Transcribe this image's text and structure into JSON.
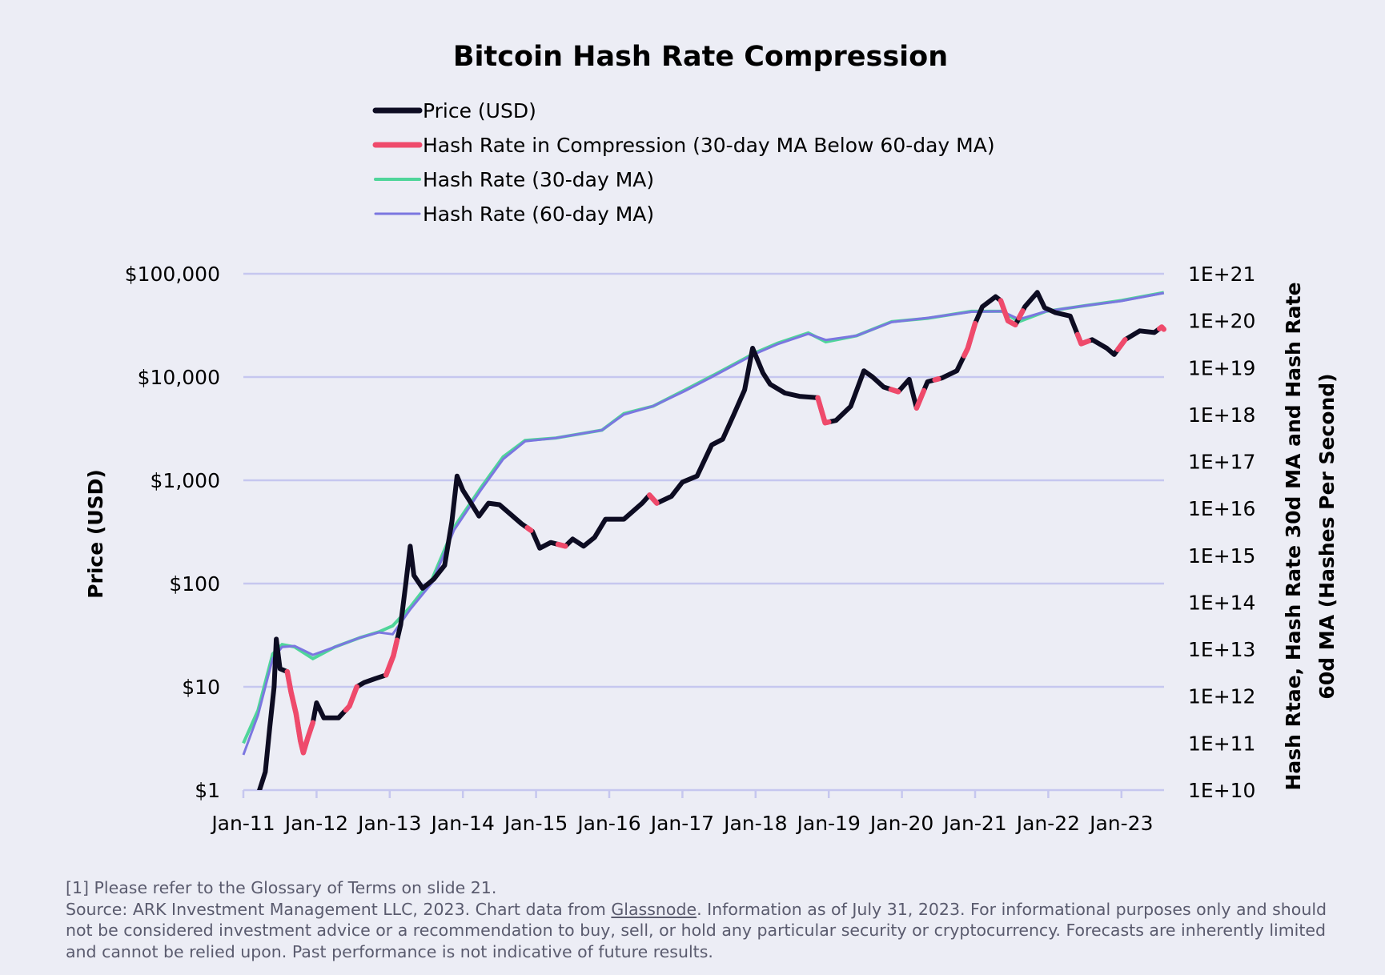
{
  "chart_data": {
    "type": "line",
    "title": "Bitcoin Hash Rate Compression",
    "legend_placement": "top",
    "grid": true,
    "legend": [
      {
        "name": "Price (USD)",
        "color": "#0d0c22"
      },
      {
        "name": "Hash Rate in Compression (30-day MA Below 60-day MA)",
        "color": "#ef4a6b"
      },
      {
        "name": "Hash Rate (30-day MA)",
        "color": "#4fd59a"
      },
      {
        "name": "Hash Rate (60-day MA)",
        "color": "#7b76e0"
      }
    ],
    "x_axis": {
      "ticks": [
        "Jan-11",
        "Jan-12",
        "Jan-13",
        "Jan-14",
        "Jan-15",
        "Jan-16",
        "Jan-17",
        "Jan-18",
        "Jan-19",
        "Jan-20",
        "Jan-21",
        "Jan-22",
        "Jan-23"
      ],
      "range": [
        "2011-01",
        "2023-07"
      ]
    },
    "y_left": {
      "label": "Price (USD)",
      "scale": "log",
      "range": [
        1,
        100000
      ],
      "ticks": [
        "$1",
        "$10",
        "$100",
        "$1,000",
        "$10,000",
        "$100,000"
      ]
    },
    "y_right": {
      "label_line1": "Hash Rtae, Hash Rate 30d MA and Hash Rate",
      "label_line2": "60d MA (Hashes Per Second)",
      "scale": "log",
      "range": [
        10000000000.0,
        1e+21
      ],
      "ticks": [
        "1E+10",
        "1E+11",
        "1E+12",
        "1E+13",
        "1E+14",
        "1E+15",
        "1E+16",
        "1E+17",
        "1E+18",
        "1E+19",
        "1E+20",
        "1E+21"
      ]
    },
    "series": [
      {
        "name": "Price (USD)",
        "axis": "left",
        "points": [
          [
            2011.08,
            0.9
          ],
          [
            2011.2,
            0.9
          ],
          [
            2011.3,
            1.5
          ],
          [
            2011.36,
            4
          ],
          [
            2011.42,
            10
          ],
          [
            2011.45,
            29
          ],
          [
            2011.5,
            15
          ],
          [
            2011.6,
            14
          ],
          [
            2011.65,
            9
          ],
          [
            2011.72,
            5.5
          ],
          [
            2011.78,
            3
          ],
          [
            2011.82,
            2.3
          ],
          [
            2011.88,
            3.2
          ],
          [
            2011.95,
            4.5
          ],
          [
            2012.0,
            7
          ],
          [
            2012.1,
            5
          ],
          [
            2012.3,
            5
          ],
          [
            2012.45,
            6.5
          ],
          [
            2012.55,
            10
          ],
          [
            2012.65,
            11
          ],
          [
            2012.8,
            12
          ],
          [
            2012.95,
            13
          ],
          [
            2013.05,
            20
          ],
          [
            2013.15,
            40
          ],
          [
            2013.22,
            100
          ],
          [
            2013.28,
            230
          ],
          [
            2013.33,
            120
          ],
          [
            2013.45,
            90
          ],
          [
            2013.6,
            110
          ],
          [
            2013.75,
            150
          ],
          [
            2013.85,
            400
          ],
          [
            2013.92,
            1100
          ],
          [
            2014.0,
            800
          ],
          [
            2014.1,
            620
          ],
          [
            2014.22,
            450
          ],
          [
            2014.35,
            600
          ],
          [
            2014.5,
            580
          ],
          [
            2014.65,
            470
          ],
          [
            2014.8,
            380
          ],
          [
            2014.95,
            320
          ],
          [
            2015.05,
            220
          ],
          [
            2015.2,
            250
          ],
          [
            2015.4,
            230
          ],
          [
            2015.5,
            270
          ],
          [
            2015.65,
            230
          ],
          [
            2015.8,
            280
          ],
          [
            2015.95,
            420
          ],
          [
            2016.2,
            420
          ],
          [
            2016.45,
            600
          ],
          [
            2016.55,
            720
          ],
          [
            2016.65,
            600
          ],
          [
            2016.85,
            700
          ],
          [
            2017.0,
            960
          ],
          [
            2017.2,
            1100
          ],
          [
            2017.4,
            2200
          ],
          [
            2017.55,
            2500
          ],
          [
            2017.7,
            4300
          ],
          [
            2017.85,
            7500
          ],
          [
            2017.96,
            19000
          ],
          [
            2018.1,
            11000
          ],
          [
            2018.2,
            8500
          ],
          [
            2018.4,
            7000
          ],
          [
            2018.6,
            6500
          ],
          [
            2018.85,
            6300
          ],
          [
            2018.95,
            3600
          ],
          [
            2019.1,
            3800
          ],
          [
            2019.3,
            5200
          ],
          [
            2019.48,
            11500
          ],
          [
            2019.6,
            10000
          ],
          [
            2019.75,
            8000
          ],
          [
            2019.95,
            7200
          ],
          [
            2020.1,
            9500
          ],
          [
            2020.2,
            5000
          ],
          [
            2020.35,
            9000
          ],
          [
            2020.55,
            9800
          ],
          [
            2020.75,
            11500
          ],
          [
            2020.9,
            19000
          ],
          [
            2021.0,
            33000
          ],
          [
            2021.1,
            48000
          ],
          [
            2021.28,
            60000
          ],
          [
            2021.35,
            55000
          ],
          [
            2021.45,
            35000
          ],
          [
            2021.55,
            32000
          ],
          [
            2021.68,
            48000
          ],
          [
            2021.85,
            66000
          ],
          [
            2021.95,
            47000
          ],
          [
            2022.1,
            42000
          ],
          [
            2022.3,
            39000
          ],
          [
            2022.45,
            21000
          ],
          [
            2022.6,
            23000
          ],
          [
            2022.8,
            19000
          ],
          [
            2022.9,
            16500
          ],
          [
            2023.05,
            23000
          ],
          [
            2023.25,
            28000
          ],
          [
            2023.45,
            27000
          ],
          [
            2023.55,
            30500
          ],
          [
            2023.58,
            29000
          ]
        ]
      },
      {
        "name": "Hash Rate (30-day MA)",
        "axis": "right",
        "points": [
          [
            2011.0,
            11.0
          ],
          [
            2011.2,
            11.7
          ],
          [
            2011.4,
            12.9
          ],
          [
            2011.53,
            13.1
          ],
          [
            2011.7,
            13.05
          ],
          [
            2011.95,
            12.8
          ],
          [
            2012.25,
            13.05
          ],
          [
            2012.6,
            13.25
          ],
          [
            2012.85,
            13.37
          ],
          [
            2013.04,
            13.5
          ],
          [
            2013.28,
            13.9
          ],
          [
            2013.58,
            14.5
          ],
          [
            2013.88,
            15.6
          ],
          [
            2014.25,
            16.45
          ],
          [
            2014.55,
            17.1
          ],
          [
            2014.85,
            17.45
          ],
          [
            2015.27,
            17.5
          ],
          [
            2015.9,
            17.67
          ],
          [
            2016.2,
            18.02
          ],
          [
            2016.6,
            18.18
          ],
          [
            2017.03,
            18.52
          ],
          [
            2017.45,
            18.86
          ],
          [
            2018.0,
            19.32
          ],
          [
            2018.3,
            19.52
          ],
          [
            2018.72,
            19.74
          ],
          [
            2018.96,
            19.55
          ],
          [
            2019.38,
            19.68
          ],
          [
            2019.86,
            19.98
          ],
          [
            2020.35,
            20.05
          ],
          [
            2020.95,
            20.2
          ],
          [
            2021.37,
            20.2
          ],
          [
            2021.6,
            19.98
          ],
          [
            2021.97,
            20.2
          ],
          [
            2022.5,
            20.32
          ],
          [
            2023.0,
            20.43
          ],
          [
            2023.58,
            20.6
          ]
        ]
      },
      {
        "name": "Hash Rate (60-day MA)",
        "axis": "right",
        "points": [
          [
            2011.0,
            10.75
          ],
          [
            2011.2,
            11.6
          ],
          [
            2011.4,
            12.8
          ],
          [
            2011.53,
            13.05
          ],
          [
            2011.7,
            13.07
          ],
          [
            2011.95,
            12.88
          ],
          [
            2012.25,
            13.05
          ],
          [
            2012.6,
            13.25
          ],
          [
            2012.85,
            13.36
          ],
          [
            2013.04,
            13.32
          ],
          [
            2013.28,
            13.85
          ],
          [
            2013.58,
            14.42
          ],
          [
            2013.88,
            15.54
          ],
          [
            2014.25,
            16.4
          ],
          [
            2014.55,
            17.05
          ],
          [
            2014.85,
            17.43
          ],
          [
            2015.27,
            17.5
          ],
          [
            2015.9,
            17.67
          ],
          [
            2016.2,
            18.0
          ],
          [
            2016.6,
            18.18
          ],
          [
            2017.03,
            18.5
          ],
          [
            2017.45,
            18.84
          ],
          [
            2018.0,
            19.3
          ],
          [
            2018.3,
            19.5
          ],
          [
            2018.72,
            19.72
          ],
          [
            2018.96,
            19.59
          ],
          [
            2019.38,
            19.68
          ],
          [
            2019.86,
            19.97
          ],
          [
            2020.35,
            20.06
          ],
          [
            2020.95,
            20.19
          ],
          [
            2021.37,
            20.2
          ],
          [
            2021.6,
            20.03
          ],
          [
            2021.97,
            20.2
          ],
          [
            2022.5,
            20.32
          ],
          [
            2023.0,
            20.42
          ],
          [
            2023.58,
            20.59
          ]
        ]
      }
    ],
    "compression_periods": [
      [
        2011.6,
        2011.95
      ],
      [
        2012.4,
        2012.55
      ],
      [
        2012.95,
        2013.1
      ],
      [
        2014.88,
        2014.93
      ],
      [
        2015.3,
        2015.4
      ],
      [
        2016.55,
        2016.65
      ],
      [
        2018.85,
        2019.0
      ],
      [
        2019.85,
        2019.95
      ],
      [
        2020.2,
        2020.3
      ],
      [
        2020.45,
        2020.5
      ],
      [
        2020.85,
        2021.0
      ],
      [
        2021.35,
        2021.55
      ],
      [
        2021.6,
        2021.65
      ],
      [
        2022.4,
        2022.55
      ],
      [
        2022.95,
        2023.05
      ],
      [
        2023.52,
        2023.58
      ]
    ],
    "colors": {
      "price": "#0d0c22",
      "compression": "#ef4a6b",
      "ma30": "#4fd59a",
      "ma60": "#7b76e0",
      "grid": "#c6c7ef"
    }
  },
  "footer": {
    "note": "[1] Please refer to the Glossary of Terms on slide 21.",
    "source_prefix": "Source: ARK Investment Management LLC, 2023. Chart data from ",
    "source_link": "Glassnode",
    "source_suffix": ". Information as of July 31, 2023. For informational purposes only and should not be considered investment advice or a recommendation to buy, sell, or hold any particular security or cryptocurrency. Forecasts are inherently limited and cannot be relied upon. Past performance is not indicative of future results."
  }
}
